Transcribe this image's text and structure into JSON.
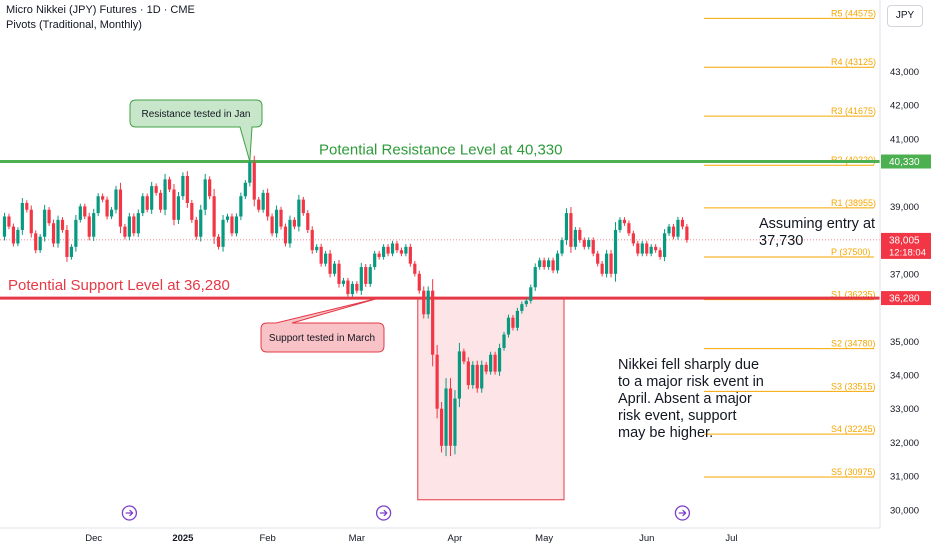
{
  "header": {
    "title": "Micro Nikkei (JPY) Futures · 1D · CME",
    "indicator": "Pivots (Traditional, Monthly)",
    "currency": "JPY"
  },
  "colors": {
    "up": "#089981",
    "down": "#f23645",
    "resistance": "#4caf50",
    "support": "#e53947",
    "pivot": "#f7a600",
    "callout_green_fill": "#c8e6c9",
    "callout_red_fill": "#f8c2c6",
    "risk_box_fill": "#fde4e6",
    "risk_box_border": "#e53947",
    "marker": "#7e3fc9"
  },
  "chart_data": {
    "type": "candlestick",
    "y_axis": {
      "ylim": [
        29700,
        45000
      ],
      "ticks": [
        "30,000",
        "31,000",
        "32,000",
        "33,000",
        "34,000",
        "35,000",
        "37,000",
        "38,000",
        "39,000",
        "41,000",
        "42,000",
        "43,000"
      ],
      "tick_values": [
        30000,
        31000,
        32000,
        33000,
        34000,
        35000,
        37000,
        38000,
        39000,
        41000,
        42000,
        43000
      ]
    },
    "x_axis": {
      "labels": [
        "Dec",
        "2025",
        "Feb",
        "Mar",
        "Apr",
        "May",
        "Jun",
        "Jul"
      ],
      "label_day_index": [
        20,
        40,
        59,
        79,
        101,
        121,
        144,
        163
      ]
    },
    "candles": [
      [
        38100,
        38700
      ],
      [
        38700,
        38400
      ],
      [
        38400,
        37900
      ],
      [
        37900,
        38300
      ],
      [
        38300,
        39100
      ],
      [
        39100,
        38900
      ],
      [
        38900,
        38200
      ],
      [
        38200,
        37700
      ],
      [
        37700,
        38100
      ],
      [
        38100,
        38900
      ],
      [
        38900,
        38500
      ],
      [
        38500,
        37900
      ],
      [
        37900,
        38600
      ],
      [
        38600,
        38300
      ],
      [
        38300,
        37500
      ],
      [
        37500,
        37800
      ],
      [
        37800,
        38600
      ],
      [
        38600,
        39000
      ],
      [
        39000,
        38700
      ],
      [
        38700,
        38100
      ],
      [
        38100,
        38800
      ],
      [
        38800,
        39300
      ],
      [
        39300,
        39200
      ],
      [
        39200,
        38700
      ],
      [
        38700,
        38900
      ],
      [
        38900,
        39500
      ],
      [
        39500,
        38400
      ],
      [
        38400,
        38100
      ],
      [
        38100,
        38700
      ],
      [
        38700,
        38200
      ],
      [
        38200,
        38800
      ],
      [
        38800,
        39300
      ],
      [
        39300,
        38900
      ],
      [
        38900,
        39600
      ],
      [
        39600,
        39400
      ],
      [
        39400,
        38900
      ],
      [
        38900,
        39800
      ],
      [
        39800,
        39500
      ],
      [
        39500,
        38600
      ],
      [
        38600,
        39300
      ],
      [
        39300,
        39900
      ],
      [
        39900,
        39100
      ],
      [
        39100,
        38600
      ],
      [
        38600,
        38100
      ],
      [
        38100,
        38900
      ],
      [
        38900,
        39800
      ],
      [
        39800,
        39300
      ],
      [
        39300,
        38100
      ],
      [
        38100,
        37800
      ],
      [
        37800,
        38600
      ],
      [
        38600,
        38700
      ],
      [
        38700,
        38200
      ],
      [
        38200,
        38700
      ],
      [
        38700,
        39300
      ],
      [
        39300,
        39700
      ],
      [
        39700,
        40300
      ],
      [
        40300,
        39200
      ],
      [
        39200,
        38900
      ],
      [
        38900,
        39400
      ],
      [
        39400,
        38700
      ],
      [
        38700,
        38200
      ],
      [
        38200,
        38900
      ],
      [
        38900,
        38400
      ],
      [
        38400,
        37900
      ],
      [
        37900,
        38600
      ],
      [
        38600,
        38400
      ],
      [
        38400,
        39200
      ],
      [
        39200,
        38800
      ],
      [
        38800,
        38300
      ],
      [
        38300,
        37700
      ],
      [
        37700,
        37800
      ],
      [
        37800,
        37300
      ],
      [
        37300,
        37600
      ],
      [
        37600,
        37000
      ],
      [
        37000,
        37300
      ],
      [
        37300,
        36700
      ],
      [
        36700,
        36800
      ],
      [
        36800,
        36400
      ],
      [
        36400,
        36700
      ],
      [
        36700,
        36500
      ],
      [
        36500,
        37200
      ],
      [
        37200,
        36700
      ],
      [
        36700,
        37200
      ],
      [
        37200,
        37600
      ],
      [
        37600,
        37500
      ],
      [
        37500,
        37800
      ],
      [
        37800,
        37600
      ],
      [
        37600,
        37900
      ],
      [
        37900,
        37700
      ],
      [
        37700,
        37600
      ],
      [
        37600,
        37800
      ],
      [
        37800,
        37300
      ],
      [
        37300,
        37000
      ],
      [
        37000,
        36500
      ],
      [
        36500,
        35800
      ],
      [
        35800,
        36500
      ],
      [
        36500,
        34600
      ],
      [
        34600,
        33000
      ],
      [
        33000,
        31900
      ],
      [
        31900,
        33600
      ],
      [
        33600,
        31900
      ],
      [
        31900,
        33300
      ],
      [
        33300,
        34700
      ],
      [
        34700,
        34400
      ],
      [
        34400,
        33700
      ],
      [
        33700,
        34300
      ],
      [
        34300,
        33600
      ],
      [
        33600,
        34300
      ],
      [
        34300,
        34100
      ],
      [
        34100,
        34600
      ],
      [
        34600,
        34100
      ],
      [
        34100,
        34800
      ],
      [
        34800,
        35200
      ],
      [
        35200,
        35700
      ],
      [
        35700,
        35400
      ],
      [
        35400,
        35900
      ],
      [
        35900,
        36100
      ],
      [
        36100,
        36200
      ],
      [
        36200,
        36600
      ],
      [
        36600,
        37200
      ],
      [
        37200,
        37400
      ],
      [
        37400,
        37200
      ],
      [
        37200,
        37400
      ],
      [
        37400,
        37100
      ],
      [
        37100,
        37600
      ],
      [
        37600,
        38000
      ],
      [
        38000,
        38800
      ],
      [
        38800,
        37800
      ],
      [
        37800,
        38300
      ],
      [
        38300,
        38000
      ],
      [
        38000,
        37800
      ],
      [
        37800,
        38000
      ],
      [
        38000,
        37600
      ],
      [
        37600,
        37300
      ],
      [
        37300,
        37000
      ],
      [
        37000,
        37600
      ],
      [
        37600,
        37000
      ],
      [
        37000,
        38300
      ],
      [
        38300,
        38600
      ],
      [
        38600,
        38500
      ],
      [
        38500,
        38200
      ],
      [
        38200,
        37900
      ],
      [
        37900,
        37600
      ],
      [
        37600,
        37900
      ],
      [
        37900,
        37600
      ],
      [
        37600,
        37800
      ],
      [
        37800,
        37700
      ],
      [
        37700,
        37500
      ],
      [
        37500,
        38200
      ],
      [
        38200,
        38400
      ],
      [
        38400,
        38100
      ],
      [
        38100,
        38600
      ],
      [
        38600,
        38400
      ],
      [
        38400,
        38000
      ]
    ],
    "levels": [
      {
        "name": "Potential Resistance Level at 40,330",
        "value": 40330
      },
      {
        "name": "Potential Support Level at 36,280",
        "value": 36280
      }
    ],
    "pivots": [
      {
        "label": "R5 (44575)",
        "value": 44575
      },
      {
        "label": "R4 (43125)",
        "value": 43125
      },
      {
        "label": "R3 (41675)",
        "value": 41675
      },
      {
        "label": "R2 (40220)",
        "value": 40220
      },
      {
        "label": "R1 (38955)",
        "value": 38955
      },
      {
        "label": "P (37500)",
        "value": 37500
      },
      {
        "label": "S1 (36235)",
        "value": 36235
      },
      {
        "label": "S2 (34780)",
        "value": 34780
      },
      {
        "label": "S3 (33515)",
        "value": 33515
      },
      {
        "label": "S4 (32245)",
        "value": 32245
      },
      {
        "label": "S5 (30975)",
        "value": 30975
      }
    ],
    "price_badges": [
      {
        "text": "40,330",
        "value": 40330,
        "kind": "resistance"
      },
      {
        "text": "38,005",
        "sub": "12:18:04",
        "value": 38005,
        "kind": "last"
      },
      {
        "text": "36,280",
        "value": 36280,
        "kind": "support"
      }
    ],
    "callouts": [
      {
        "text": "Resistance tested in Jan",
        "kind": "green",
        "target_day": 55,
        "target_value": 40330
      },
      {
        "text": "Support tested in March",
        "kind": "red",
        "target_day": 84,
        "target_value": 36280
      }
    ],
    "risk_box": {
      "start_day": 93,
      "end_day": 125,
      "top": 36280,
      "bottom": 30300
    },
    "risk_note": [
      "Nikkei fell sharply due",
      "to a major risk event in",
      "April. Absent a major",
      "risk event, support",
      "may be higher."
    ],
    "entry_note": [
      "Assuming entry at",
      "37,730"
    ],
    "event_markers_day": [
      28,
      85,
      152
    ]
  }
}
